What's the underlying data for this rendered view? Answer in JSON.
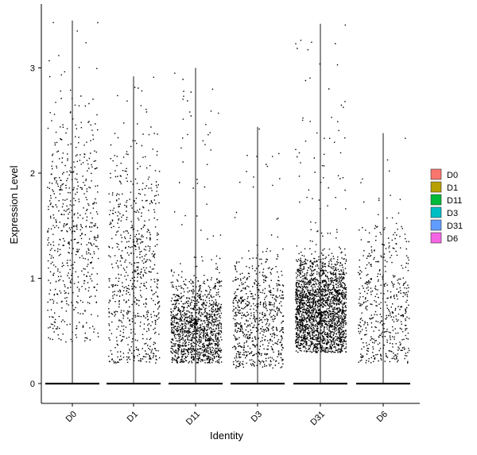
{
  "chart_data": {
    "type": "violin-jitter",
    "xlabel": "Identity",
    "ylabel": "Expression Level",
    "ylim": [
      -0.18,
      3.55
    ],
    "yticks": [
      0,
      1,
      2,
      3
    ],
    "categories": [
      "D0",
      "D1",
      "D11",
      "D3",
      "D31",
      "D6"
    ],
    "colors": [
      "#F8766D",
      "#B79F00",
      "#00BA38",
      "#00BFC4",
      "#619CFF",
      "#F564E3"
    ],
    "legend": {
      "placement": "right",
      "entries": [
        "D0",
        "D1",
        "D11",
        "D3",
        "D31",
        "D6"
      ]
    },
    "grid": false,
    "series": [
      {
        "category": "D0",
        "max": 3.45,
        "nonzero_points": 600,
        "dense_range": [
          0.4,
          2.5
        ],
        "median_nonzero": 1.5
      },
      {
        "category": "D1",
        "max": 2.92,
        "nonzero_points": 700,
        "dense_range": [
          0.2,
          2.2
        ],
        "median_nonzero": 1.0
      },
      {
        "category": "D11",
        "max": 3.0,
        "nonzero_points": 1300,
        "dense_range": [
          0.2,
          1.0
        ],
        "median_nonzero": 0.5
      },
      {
        "category": "D3",
        "max": 2.44,
        "nonzero_points": 700,
        "dense_range": [
          0.15,
          1.2
        ],
        "median_nonzero": 0.6
      },
      {
        "category": "D31",
        "max": 3.42,
        "nonzero_points": 2200,
        "dense_range": [
          0.3,
          1.2
        ],
        "median_nonzero": 0.7
      },
      {
        "category": "D6",
        "max": 2.38,
        "nonzero_points": 500,
        "dense_range": [
          0.2,
          1.5
        ],
        "median_nonzero": 0.7
      }
    ]
  }
}
